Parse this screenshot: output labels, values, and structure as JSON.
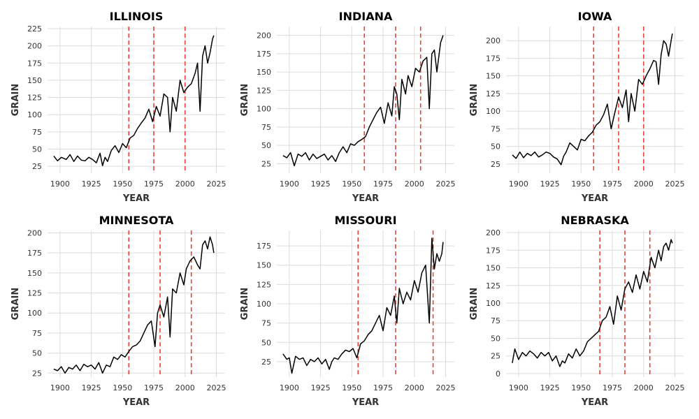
{
  "chart_data": [
    {
      "type": "line",
      "title": "ILLINOIS",
      "xlabel": "YEAR",
      "ylabel": "GRAIN",
      "xlim": [
        1890,
        2032
      ],
      "ylim": [
        15,
        228
      ],
      "xticks": [
        1900,
        1925,
        1950,
        1975,
        2000,
        2025
      ],
      "yticks": [
        25,
        50,
        75,
        100,
        125,
        150,
        175,
        200,
        225
      ],
      "reference_lines_x": [
        1955,
        1975,
        2000
      ],
      "grid": true,
      "series": [
        {
          "x": [
            1895,
            1898,
            1901,
            1905,
            1908,
            1911,
            1914,
            1917,
            1920,
            1923,
            1926,
            1929,
            1932,
            1934,
            1936,
            1938,
            1941,
            1944,
            1947,
            1950,
            1953,
            1956,
            1959,
            1962,
            1965,
            1968,
            1971,
            1974,
            1977,
            1980,
            1983,
            1986,
            1988,
            1990,
            1993,
            1996,
            1999,
            2002,
            2005,
            2008,
            2010,
            2012,
            2014,
            2016,
            2018,
            2020,
            2022,
            2023
          ],
          "y": [
            40,
            33,
            38,
            35,
            42,
            32,
            40,
            34,
            33,
            38,
            35,
            30,
            44,
            26,
            38,
            32,
            48,
            55,
            45,
            58,
            52,
            66,
            70,
            80,
            88,
            95,
            108,
            90,
            112,
            98,
            130,
            125,
            75,
            125,
            105,
            150,
            132,
            140,
            145,
            160,
            175,
            105,
            185,
            200,
            175,
            190,
            210,
            215
          ]
        }
      ]
    },
    {
      "type": "line",
      "title": "INDIANA",
      "xlabel": "YEAR",
      "ylabel": "GRAIN",
      "xlim": [
        1890,
        2032
      ],
      "ylim": [
        12,
        212
      ],
      "xticks": [
        1900,
        1925,
        1950,
        1975,
        2000,
        2025
      ],
      "yticks": [
        25,
        50,
        75,
        100,
        125,
        150,
        175,
        200
      ],
      "reference_lines_x": [
        1960,
        1985,
        2005
      ],
      "grid": true,
      "series": [
        {
          "x": [
            1895,
            1898,
            1901,
            1904,
            1907,
            1910,
            1913,
            1916,
            1919,
            1922,
            1925,
            1928,
            1931,
            1934,
            1937,
            1940,
            1943,
            1946,
            1949,
            1952,
            1955,
            1958,
            1961,
            1964,
            1967,
            1970,
            1973,
            1976,
            1979,
            1982,
            1984,
            1986,
            1988,
            1990,
            1993,
            1995,
            1998,
            2001,
            2004,
            2007,
            2010,
            2012,
            2014,
            2016,
            2018,
            2021,
            2023
          ],
          "y": [
            36,
            33,
            40,
            22,
            38,
            35,
            40,
            30,
            38,
            32,
            35,
            38,
            30,
            36,
            28,
            40,
            48,
            40,
            52,
            50,
            55,
            58,
            62,
            75,
            85,
            95,
            102,
            80,
            108,
            90,
            130,
            120,
            85,
            140,
            120,
            145,
            130,
            155,
            150,
            165,
            170,
            100,
            175,
            180,
            150,
            190,
            200
          ]
        }
      ]
    },
    {
      "type": "line",
      "title": "IOWA",
      "xlabel": "YEAR",
      "ylabel": "GRAIN",
      "xlim": [
        1890,
        2032
      ],
      "ylim": [
        12,
        220
      ],
      "xticks": [
        1900,
        1925,
        1950,
        1975,
        2000,
        2025
      ],
      "yticks": [
        25,
        50,
        75,
        100,
        125,
        150,
        175,
        200
      ],
      "reference_lines_x": [
        1960,
        1980,
        2000
      ],
      "grid": true,
      "series": [
        {
          "x": [
            1895,
            1898,
            1901,
            1904,
            1907,
            1910,
            1913,
            1916,
            1919,
            1922,
            1925,
            1928,
            1931,
            1934,
            1936,
            1938,
            1941,
            1944,
            1947,
            1950,
            1953,
            1956,
            1959,
            1962,
            1965,
            1968,
            1971,
            1974,
            1977,
            1980,
            1983,
            1986,
            1988,
            1990,
            1993,
            1996,
            1999,
            2002,
            2005,
            2008,
            2010,
            2012,
            2014,
            2016,
            2018,
            2020,
            2022,
            2023
          ],
          "y": [
            38,
            33,
            42,
            34,
            40,
            37,
            42,
            35,
            38,
            42,
            40,
            35,
            32,
            24,
            36,
            42,
            55,
            50,
            45,
            60,
            58,
            65,
            70,
            80,
            85,
            95,
            110,
            75,
            98,
            120,
            105,
            130,
            85,
            125,
            100,
            145,
            138,
            150,
            160,
            172,
            170,
            138,
            180,
            200,
            195,
            178,
            200,
            210
          ]
        }
      ]
    },
    {
      "type": "line",
      "title": "MINNESOTA",
      "xlabel": "YEAR",
      "ylabel": "GRAIN",
      "xlim": [
        1890,
        2032
      ],
      "ylim": [
        20,
        203
      ],
      "xticks": [
        1900,
        1925,
        1950,
        1975,
        2000,
        2025
      ],
      "yticks": [
        25,
        50,
        75,
        100,
        125,
        150,
        175,
        200
      ],
      "reference_lines_x": [
        1955,
        1980,
        2005
      ],
      "grid": true,
      "series": [
        {
          "x": [
            1895,
            1898,
            1901,
            1904,
            1907,
            1910,
            1913,
            1916,
            1919,
            1922,
            1925,
            1928,
            1931,
            1934,
            1937,
            1940,
            1943,
            1946,
            1949,
            1952,
            1955,
            1958,
            1961,
            1964,
            1967,
            1970,
            1973,
            1976,
            1978,
            1980,
            1983,
            1986,
            1988,
            1990,
            1993,
            1996,
            1999,
            2001,
            2004,
            2007,
            2010,
            2012,
            2014,
            2016,
            2018,
            2020,
            2022,
            2023
          ],
          "y": [
            30,
            28,
            33,
            25,
            32,
            30,
            35,
            28,
            36,
            33,
            35,
            30,
            38,
            25,
            35,
            33,
            45,
            42,
            48,
            45,
            52,
            58,
            60,
            65,
            75,
            85,
            90,
            58,
            100,
            110,
            95,
            120,
            70,
            130,
            125,
            150,
            135,
            155,
            165,
            170,
            160,
            155,
            185,
            190,
            180,
            195,
            185,
            175
          ]
        }
      ]
    },
    {
      "type": "line",
      "title": "MISSOURI",
      "xlabel": "YEAR",
      "ylabel": "GRAIN",
      "xlim": [
        1890,
        2032
      ],
      "ylim": [
        5,
        195
      ],
      "xticks": [
        1900,
        1925,
        1950,
        1975,
        2000,
        2025
      ],
      "yticks": [
        25,
        50,
        75,
        100,
        125,
        150,
        175
      ],
      "reference_lines_x": [
        1955,
        1985,
        2015
      ],
      "grid": true,
      "series": [
        {
          "x": [
            1895,
            1898,
            1900,
            1902,
            1905,
            1908,
            1911,
            1914,
            1917,
            1920,
            1923,
            1926,
            1929,
            1932,
            1934,
            1936,
            1939,
            1942,
            1945,
            1948,
            1951,
            1954,
            1957,
            1960,
            1963,
            1966,
            1969,
            1972,
            1975,
            1978,
            1981,
            1984,
            1986,
            1988,
            1991,
            1994,
            1997,
            2000,
            2003,
            2006,
            2009,
            2012,
            2014,
            2016,
            2018,
            2020,
            2022,
            2023
          ],
          "y": [
            35,
            28,
            30,
            10,
            32,
            28,
            30,
            20,
            28,
            25,
            30,
            22,
            28,
            15,
            25,
            30,
            28,
            35,
            40,
            38,
            42,
            30,
            48,
            52,
            60,
            65,
            75,
            85,
            65,
            95,
            85,
            110,
            75,
            120,
            100,
            115,
            105,
            130,
            115,
            140,
            150,
            75,
            185,
            145,
            165,
            155,
            165,
            180
          ]
        }
      ]
    },
    {
      "type": "line",
      "title": "NEBRASKA",
      "xlabel": "YEAR",
      "ylabel": "GRAIN",
      "xlim": [
        1890,
        2032
      ],
      "ylim": [
        -5,
        203
      ],
      "xticks": [
        1900,
        1925,
        1950,
        1975,
        2000,
        2025
      ],
      "yticks": [
        0,
        25,
        50,
        75,
        100,
        125,
        150,
        175,
        200
      ],
      "reference_lines_x": [
        1965,
        1985,
        2005
      ],
      "grid": true,
      "series": [
        {
          "x": [
            1895,
            1897,
            1900,
            1903,
            1906,
            1909,
            1912,
            1915,
            1918,
            1921,
            1924,
            1927,
            1930,
            1933,
            1935,
            1937,
            1940,
            1943,
            1946,
            1949,
            1952,
            1955,
            1958,
            1961,
            1964,
            1967,
            1970,
            1973,
            1976,
            1979,
            1982,
            1985,
            1988,
            1991,
            1994,
            1997,
            2000,
            2003,
            2006,
            2009,
            2012,
            2014,
            2016,
            2018,
            2020,
            2022,
            2023
          ],
          "y": [
            15,
            35,
            20,
            30,
            25,
            32,
            28,
            22,
            30,
            25,
            30,
            18,
            25,
            10,
            18,
            15,
            28,
            22,
            35,
            25,
            32,
            45,
            50,
            55,
            60,
            75,
            80,
            95,
            70,
            110,
            90,
            120,
            130,
            115,
            140,
            120,
            145,
            130,
            165,
            150,
            175,
            160,
            180,
            185,
            175,
            190,
            185
          ]
        }
      ]
    }
  ]
}
